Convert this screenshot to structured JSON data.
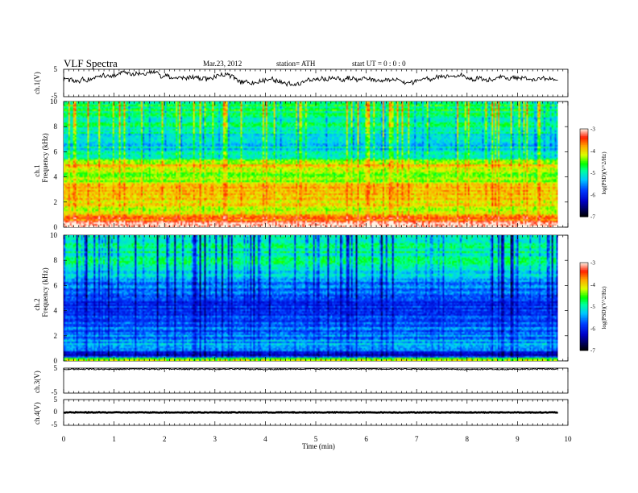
{
  "header": {
    "title": "VLF  Spectra",
    "date": "Mar.23, 2012",
    "station": "station= ATH",
    "start": "start  UT =   0 : 0 : 0"
  },
  "colors": {
    "waveform": "#000000",
    "axis": "#000000",
    "colormap": [
      "#000000",
      "#0000ff",
      "#00ffff",
      "#00ff00",
      "#ffff00",
      "#ff0000",
      "#ffffff"
    ]
  },
  "chart_data": [
    {
      "type": "line",
      "panel": "ch1-waveform",
      "ylabel": "ch.1(V)",
      "ylim": [
        -5,
        5
      ],
      "yticks": [
        "5",
        "-5"
      ],
      "xlim": [
        0,
        10
      ],
      "description_series": "baseline voltage trace varying around ~+1.5 V"
    },
    {
      "type": "heatmap",
      "panel": "ch1-spectrogram",
      "ylabel_top": "ch.1",
      "ylabel": "Frequency  (kHz)",
      "ylim": [
        0,
        10
      ],
      "yticks": [
        "0",
        "2",
        "4",
        "6",
        "8",
        "10"
      ],
      "xlim": [
        0,
        10
      ],
      "colorbar": {
        "label": "log(PSD)(V^2/Hz)",
        "range": [
          -7,
          -3
        ],
        "ticks": [
          "-3",
          "-4",
          "-5",
          "-6",
          "-7"
        ]
      },
      "band_levels": [
        {
          "f": 0.2,
          "level": -3.0
        },
        {
          "f": 0.6,
          "level": -3.6
        },
        {
          "f": 1.2,
          "level": -4.3
        },
        {
          "f": 2.0,
          "level": -4.1
        },
        {
          "f": 2.8,
          "level": -3.8
        },
        {
          "f": 3.6,
          "level": -4.2
        },
        {
          "f": 4.2,
          "level": -4.5
        },
        {
          "f": 4.8,
          "level": -3.9
        },
        {
          "f": 5.4,
          "level": -4.7
        },
        {
          "f": 6.0,
          "level": -5.2
        },
        {
          "f": 7.0,
          "level": -5.1
        },
        {
          "f": 8.0,
          "level": -4.9
        },
        {
          "f": 9.0,
          "level": -4.8
        },
        {
          "f": 10.0,
          "level": -4.7
        }
      ]
    },
    {
      "type": "heatmap",
      "panel": "ch2-spectrogram",
      "ylabel_top": "ch.2",
      "ylabel": "Frequency  (kHz)",
      "ylim": [
        0,
        10
      ],
      "yticks": [
        "0",
        "2",
        "4",
        "6",
        "8",
        "10"
      ],
      "xlim": [
        0,
        10
      ],
      "colorbar": {
        "label": "log(PSD)(V^2/Hz)",
        "range": [
          -7,
          -3
        ],
        "ticks": [
          "-3",
          "-4",
          "-5",
          "-6",
          "-7"
        ]
      },
      "band_levels": [
        {
          "f": 0.1,
          "level": -4.0
        },
        {
          "f": 0.4,
          "level": -6.6
        },
        {
          "f": 1.0,
          "level": -5.2
        },
        {
          "f": 2.0,
          "level": -5.6
        },
        {
          "f": 3.0,
          "level": -5.7
        },
        {
          "f": 4.0,
          "level": -6.0
        },
        {
          "f": 5.0,
          "level": -5.8
        },
        {
          "f": 6.0,
          "level": -5.6
        },
        {
          "f": 7.0,
          "level": -5.2
        },
        {
          "f": 8.0,
          "level": -4.9
        },
        {
          "f": 9.0,
          "level": -4.9
        },
        {
          "f": 10.0,
          "level": -5.0
        }
      ]
    },
    {
      "type": "line",
      "panel": "ch3-waveform",
      "ylabel": "ch.3(V)",
      "ylim": [
        -5,
        5
      ],
      "yticks": [
        "5",
        "-5"
      ],
      "xlim": [
        0,
        10
      ],
      "baseline_v": 4.6
    },
    {
      "type": "line",
      "panel": "ch4-waveform",
      "ylabel": "ch.4(V)",
      "ylim": [
        -5,
        5
      ],
      "yticks": [
        "5",
        "0",
        "-5"
      ],
      "xlim": [
        0,
        10
      ],
      "baseline_v": 0.0
    }
  ],
  "xaxis": {
    "label": "Time  (min)",
    "ticks": [
      "0",
      "1",
      "2",
      "3",
      "4",
      "5",
      "6",
      "7",
      "8",
      "9",
      "10"
    ],
    "data_end_min": 9.8
  }
}
